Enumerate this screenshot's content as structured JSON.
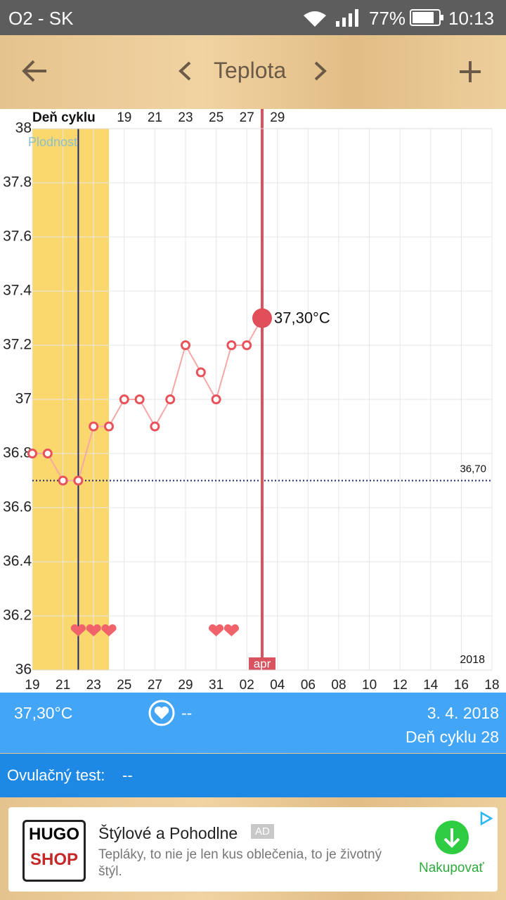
{
  "status_bar": {
    "carrier": "O2 - SK",
    "battery": "77%",
    "time": "10:13"
  },
  "header": {
    "title": "Teplota"
  },
  "chart_data": {
    "type": "line",
    "x2_label": "Deň cyklu",
    "x": [
      0,
      1,
      2,
      3,
      4,
      5,
      6,
      7,
      8,
      9,
      10,
      11,
      12,
      13,
      14,
      15
    ],
    "values": [
      36.8,
      36.8,
      36.7,
      36.7,
      36.9,
      36.9,
      37.0,
      37.0,
      36.9,
      37.0,
      37.2,
      37.1,
      37.0,
      37.2,
      37.2,
      37.3
    ],
    "color": "#e8525a",
    "line_color": "#f5a8a8",
    "xlim": [
      0,
      30
    ],
    "xticks": [
      {
        "value": 0,
        "label": "19"
      },
      {
        "value": 2,
        "label": "21"
      },
      {
        "value": 4,
        "label": "23"
      },
      {
        "value": 6,
        "label": "25"
      },
      {
        "value": 8,
        "label": "27"
      },
      {
        "value": 10,
        "label": "29"
      },
      {
        "value": 12,
        "label": "31"
      },
      {
        "value": 14,
        "label": "02"
      },
      {
        "value": 16,
        "label": "04"
      },
      {
        "value": 18,
        "label": "06"
      },
      {
        "value": 20,
        "label": "08"
      },
      {
        "value": 22,
        "label": "10"
      },
      {
        "value": 24,
        "label": "12"
      },
      {
        "value": 26,
        "label": "14"
      },
      {
        "value": 28,
        "label": "16"
      },
      {
        "value": 30,
        "label": "18"
      }
    ],
    "x2lim": [
      13,
      43
    ],
    "x2ticks": [
      19,
      21,
      23,
      25,
      27,
      29
    ],
    "ylim": [
      36,
      38
    ],
    "yticks": [
      36,
      36.2,
      36.4,
      36.6,
      36.8,
      37,
      37.2,
      37.4,
      37.6,
      37.8,
      38
    ],
    "grid": true,
    "fertile_window": {
      "label": "Plodnosť",
      "x": [
        0,
        5
      ]
    },
    "ovulation_x": 3,
    "cover_line": {
      "value": 36.7,
      "label": "36,70"
    },
    "selected_x": 15,
    "selected_label": "37,30°C",
    "selected_month": "apr",
    "intercourse_x": [
      3,
      4,
      5,
      12,
      13
    ],
    "year_label": "2018"
  },
  "summary": {
    "temperature": "37,30°C",
    "intercourse": "--",
    "date": "3. 4. 2018",
    "cycle_day": "Deň cyklu 28"
  },
  "ovulation_test": {
    "label": "Ovulačný test:",
    "value": "--"
  },
  "ad": {
    "logo_top": "HUGO",
    "logo_bottom": "SHOP",
    "title": "Štýlové a Pohodlne",
    "badge": "AD",
    "text": "Tepláky, to nie je len kus oblečenia, to je životný štýl.",
    "button": "Nakupovať"
  }
}
